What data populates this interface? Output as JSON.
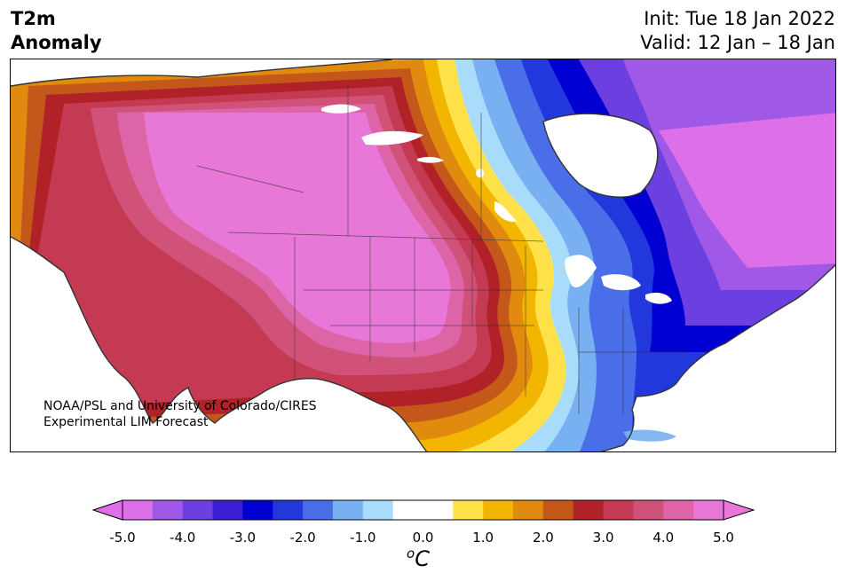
{
  "header": {
    "variable": "T2m",
    "product": "Anomaly",
    "init": "Init: Tue 18 Jan 2022",
    "valid": "Valid: 12 Jan – 18 Jan"
  },
  "map": {
    "region": "North America",
    "credit_line1": "NOAA/PSL and University of Colorado/CIRES",
    "credit_line2": "Experimental LIM Forecast"
  },
  "colorbar": {
    "ticks": [
      "-5.0",
      "-4.0",
      "-3.0",
      "-2.0",
      "-1.0",
      "0.0",
      "1.0",
      "2.0",
      "3.0",
      "4.0",
      "5.0"
    ],
    "units_base": "C",
    "units_sup": "o",
    "bins": [
      {
        "range": "-5.0 to -4.5",
        "color": "#dd6fe8"
      },
      {
        "range": "-4.5 to -4.0",
        "color": "#a058e6"
      },
      {
        "range": "-4.0 to -3.5",
        "color": "#6c3fe0"
      },
      {
        "range": "-3.5 to -3.0",
        "color": "#3b1fd6"
      },
      {
        "range": "-3.0 to -2.5",
        "color": "#0000d2"
      },
      {
        "range": "-2.5 to -2.0",
        "color": "#2338dc"
      },
      {
        "range": "-2.0 to -1.5",
        "color": "#4a6ee8"
      },
      {
        "range": "-1.5 to -1.0",
        "color": "#78b0f2"
      },
      {
        "range": "-1.0 to -0.5",
        "color": "#a8dcfa"
      },
      {
        "range": "-0.5 to 0.5",
        "color": "#ffffff"
      },
      {
        "range": "0.5 to 1.0",
        "color": "#ffe24a"
      },
      {
        "range": "1.0 to 1.5",
        "color": "#f2b600"
      },
      {
        "range": "1.5 to 2.0",
        "color": "#e08a10"
      },
      {
        "range": "2.0 to 2.5",
        "color": "#c4581a"
      },
      {
        "range": "2.5 to 3.0",
        "color": "#b02228"
      },
      {
        "range": "3.0 to 3.5",
        "color": "#c43a52"
      },
      {
        "range": "3.5 to 4.0",
        "color": "#d05278"
      },
      {
        "range": "4.0 to 4.5",
        "color": "#de64a8"
      },
      {
        "range": "4.5 to 5.0",
        "color": "#e878d8"
      }
    ],
    "extend_low_color": "#dd6fe8",
    "extend_high_color": "#e878d8"
  },
  "colors": {
    "warm_core": "#e878d8",
    "cold_core": "#0000d2",
    "ocean": "#ffffff",
    "coastline": "#333333"
  }
}
